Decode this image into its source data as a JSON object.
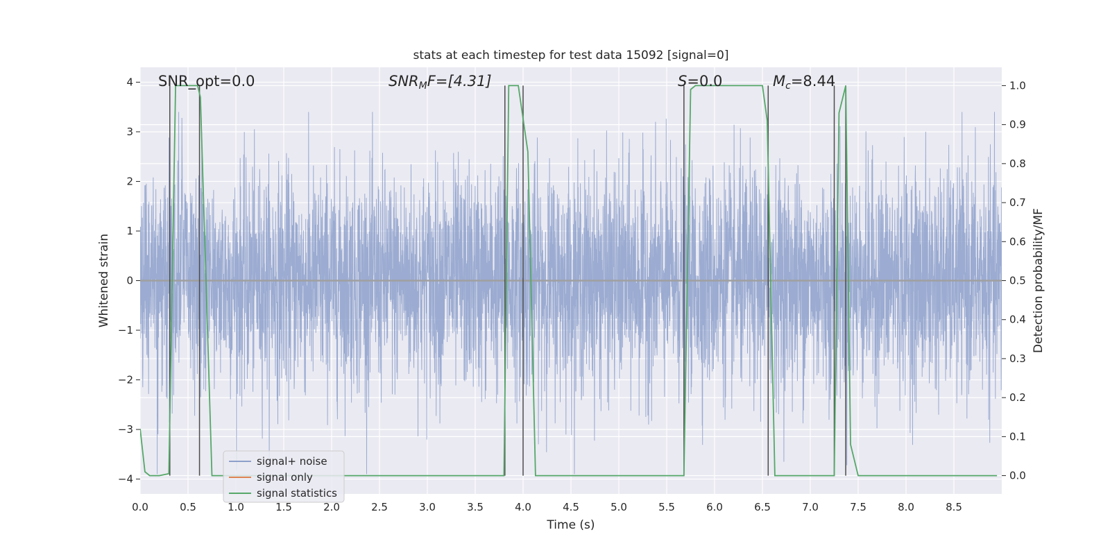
{
  "chart_data": {
    "type": "line",
    "title": "stats at each timestep for test data 15092 [signal=0]",
    "xlabel": "Time (s)",
    "ylabel": "Whitened strain",
    "y2label": "Detection probability/MF",
    "xlim": [
      0.0,
      9.0
    ],
    "ylim": [
      -4.3,
      4.3
    ],
    "y2lim": [
      -0.047,
      1.047
    ],
    "xticks": [
      "0.0",
      "0.5",
      "1.0",
      "1.5",
      "2.0",
      "2.5",
      "3.0",
      "3.5",
      "4.0",
      "4.5",
      "5.0",
      "5.5",
      "6.0",
      "6.5",
      "7.0",
      "7.5",
      "8.0",
      "8.5"
    ],
    "yticks": [
      "4",
      "3",
      "2",
      "1",
      "0",
      "−1",
      "−2",
      "−3",
      "−4"
    ],
    "y2ticks": [
      "1.0",
      "0.9",
      "0.8",
      "0.7",
      "0.6",
      "0.5",
      "0.4",
      "0.3",
      "0.2",
      "0.1",
      "0.0"
    ],
    "grid": true,
    "legend_position": "lower left",
    "annotations": {
      "snr_opt": "SNR_opt=0.0",
      "snr_mf_base": "SNR",
      "snr_mf_sub": "M",
      "snr_mf_rest": "F=[4.31]",
      "s_base": "S",
      "s_rest": "=0.0",
      "mc_base": "M",
      "mc_sub": "c",
      "mc_rest": "=8.44"
    },
    "series": [
      {
        "name": "signal+ noise",
        "color": "#8da0cb",
        "axis": "left",
        "noise_std": 1.1,
        "description_values": "random noise approximately within [-3.9, 3.4]"
      },
      {
        "name": "signal only",
        "color": "#dd8452",
        "axis": "left",
        "x": [
          0.0,
          9.0
        ],
        "y": [
          0.0,
          0.0
        ]
      },
      {
        "name": "signal statistics",
        "color": "#55a868",
        "axis": "right",
        "x": [
          0.0,
          0.05,
          0.1,
          0.2,
          0.3,
          0.37,
          0.5,
          0.6,
          0.63,
          0.75,
          1.0,
          1.5,
          2.0,
          2.5,
          3.0,
          3.5,
          3.8,
          3.85,
          3.95,
          4.05,
          4.13,
          4.5,
          5.0,
          5.5,
          5.68,
          5.75,
          5.8,
          6.0,
          6.5,
          6.55,
          6.63,
          6.7,
          7.0,
          7.25,
          7.3,
          7.37,
          7.42,
          7.5,
          8.0,
          8.5,
          8.95
        ],
        "y": [
          0.12,
          0.01,
          0.0,
          0.0,
          0.005,
          1.0,
          1.0,
          1.0,
          0.97,
          0.0,
          0.0,
          0.0,
          0.0,
          0.0,
          0.0,
          0.0,
          0.0,
          1.0,
          1.0,
          0.83,
          0.0,
          0.0,
          0.0,
          0.0,
          0.0,
          0.99,
          1.0,
          1.0,
          1.0,
          0.91,
          0.0,
          0.0,
          0.0,
          0.0,
          0.93,
          1.0,
          0.08,
          0.0,
          0.0,
          0.0,
          0.0
        ]
      }
    ],
    "detection_lines_x": [
      0.31,
      0.62,
      3.81,
      4.0,
      5.68,
      6.56,
      7.25,
      7.37
    ],
    "colors": {
      "plot_bg": "#eaeaf2",
      "grid": "#ffffff",
      "detection_line": "#4c4c4c"
    }
  }
}
